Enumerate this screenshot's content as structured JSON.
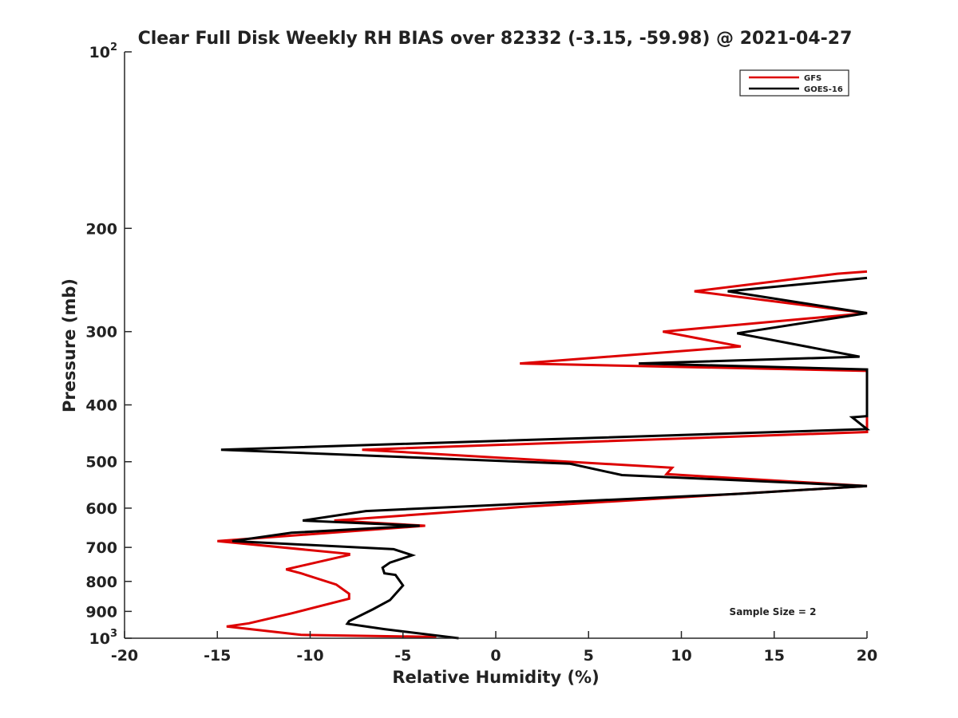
{
  "chart_data": {
    "type": "line",
    "title": "Clear Full Disk Weekly RH BIAS over 82332 (-3.15, -59.98) @ 2021-04-27",
    "xlabel": "Relative Humidity (%)",
    "ylabel": "Pressure (mb)",
    "xlim": [
      -20,
      20
    ],
    "ylim": [
      1000,
      100
    ],
    "yscale": "log",
    "y_reversed": true,
    "x_ticks": [
      "-20",
      "-15",
      "-10",
      "-5",
      "0",
      "5",
      "10",
      "15",
      "20"
    ],
    "y_ticks": [
      {
        "value": 100,
        "base": "10",
        "exp": "2"
      },
      {
        "value": 200,
        "label": "200"
      },
      {
        "value": 300,
        "label": "300"
      },
      {
        "value": 400,
        "label": "400"
      },
      {
        "value": 500,
        "label": "500"
      },
      {
        "value": 600,
        "label": "600"
      },
      {
        "value": 700,
        "label": "700"
      },
      {
        "value": 800,
        "label": "800"
      },
      {
        "value": 900,
        "label": "900"
      },
      {
        "value": 1000,
        "base": "10",
        "exp": "3"
      }
    ],
    "legend_position": "top-right",
    "grid": false,
    "annotation": "Sample Size = 2",
    "series": [
      {
        "name": "GFS",
        "color": "#dd0000",
        "points": [
          [
            20,
            237
          ],
          [
            18.4,
            239
          ],
          [
            10.7,
            256
          ],
          [
            20,
            279
          ],
          [
            9.0,
            300
          ],
          [
            13.2,
            318
          ],
          [
            1.3,
            340
          ],
          [
            20,
            350
          ],
          [
            20,
            445
          ],
          [
            -7.2,
            477
          ],
          [
            9.5,
            512
          ],
          [
            9.2,
            525
          ],
          [
            20,
            550
          ],
          [
            1.5,
            597
          ],
          [
            -8.7,
            630
          ],
          [
            -3.8,
            643
          ],
          [
            -15.0,
            683
          ],
          [
            -7.9,
            718
          ],
          [
            -7.9,
            721
          ],
          [
            -11.3,
            763
          ],
          [
            -10.5,
            775
          ],
          [
            -8.6,
            810
          ],
          [
            -7.9,
            840
          ],
          [
            -7.9,
            856
          ],
          [
            -11.0,
            907
          ],
          [
            -13.3,
            943
          ],
          [
            -14.5,
            955
          ],
          [
            -10.5,
            987
          ],
          [
            -3.2,
            995
          ]
        ]
      },
      {
        "name": "GOES-16",
        "color": "#000000",
        "points": [
          [
            20,
            243
          ],
          [
            12.5,
            256
          ],
          [
            20,
            279
          ],
          [
            13.0,
            302
          ],
          [
            19.6,
            331
          ],
          [
            7.7,
            340
          ],
          [
            20,
            348
          ],
          [
            20,
            418
          ],
          [
            19.2,
            420
          ],
          [
            20,
            440
          ],
          [
            -14.8,
            477
          ],
          [
            4.0,
            504
          ],
          [
            6.8,
            527
          ],
          [
            20,
            550
          ],
          [
            13.2,
            567
          ],
          [
            -7.0,
            607
          ],
          [
            -10.4,
            630
          ],
          [
            -4.1,
            643
          ],
          [
            -11.0,
            661
          ],
          [
            -14.2,
            683
          ],
          [
            -5.5,
            705
          ],
          [
            -4.5,
            722
          ],
          [
            -5.7,
            743
          ],
          [
            -6.1,
            758
          ],
          [
            -6.0,
            775
          ],
          [
            -5.4,
            780
          ],
          [
            -5.0,
            813
          ],
          [
            -5.7,
            861
          ],
          [
            -6.6,
            892
          ],
          [
            -7.9,
            935
          ],
          [
            -8.0,
            945
          ],
          [
            -6.0,
            965
          ],
          [
            -2.0,
            1000
          ]
        ]
      }
    ]
  }
}
